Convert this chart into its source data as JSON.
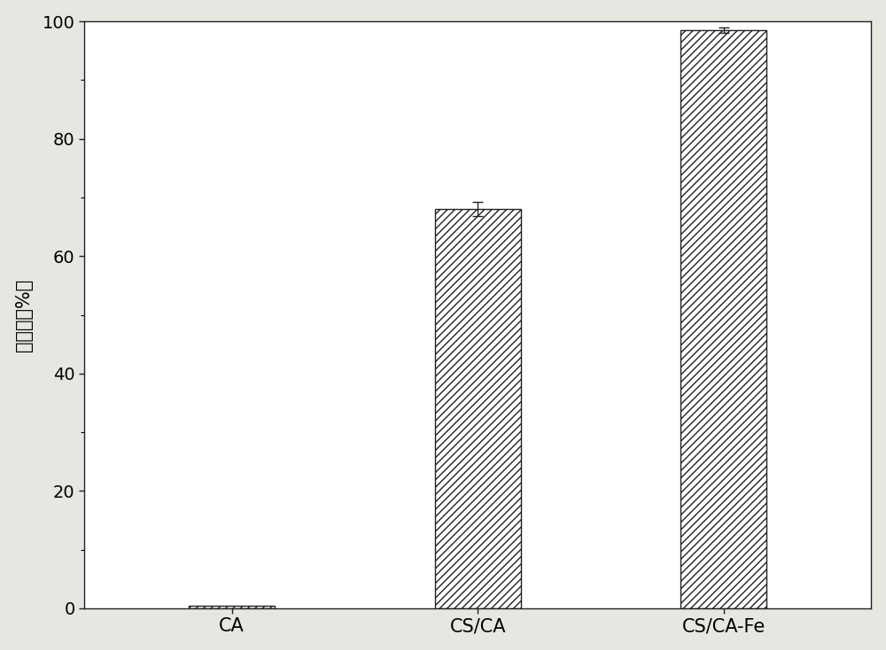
{
  "categories": [
    "CA",
    "CS/CA",
    "CS/CA-Fe"
  ],
  "values": [
    0.5,
    68.0,
    98.5
  ],
  "error_bars": [
    0.2,
    1.2,
    0.4
  ],
  "ylabel": "去除率（%）",
  "ylim": [
    0,
    100
  ],
  "yticks": [
    0,
    20,
    40,
    60,
    80,
    100
  ],
  "bar_color": "white",
  "bar_edge_color": "#222222",
  "hatch_pattern": "////",
  "bar_width": 0.35,
  "figure_bg": "#e8e6e0",
  "axes_bg": "#ffffff",
  "tick_fontsize": 14,
  "ylabel_fontsize": 15,
  "xtick_fontsize": 15
}
